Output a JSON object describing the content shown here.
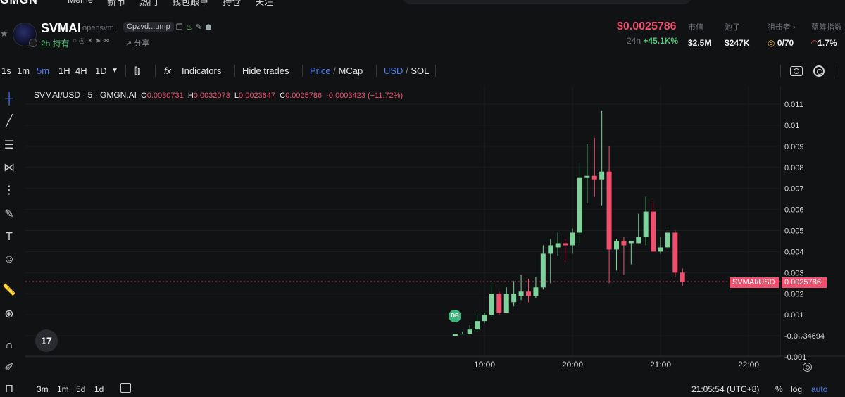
{
  "topnav": {
    "brand": "GMGN",
    "items": [
      "Meme",
      "新币",
      "热门",
      "钱包跟单",
      "持仓",
      "关注"
    ]
  },
  "token": {
    "name": "SVMAI",
    "platform": "opensvm.",
    "address_short": "Cpzvd...ump",
    "hold_time": "2h 持有",
    "share_label": "分享",
    "price": "$0.0025786",
    "change_label": "24h",
    "change_pct": "+45.1K%",
    "stats": [
      {
        "label": "市值",
        "value": "$2.5M"
      },
      {
        "label": "池子",
        "value": "$247K"
      },
      {
        "label": "狙击者 ›",
        "value": "0/70"
      },
      {
        "label": "蓝筹指数",
        "value": "1.7%"
      }
    ]
  },
  "toolbar": {
    "intervals": [
      "1s",
      "1m",
      "5m",
      "1H",
      "4H",
      "1D"
    ],
    "active_interval": "5m",
    "indicators_label": "Indicators",
    "hide_trades_label": "Hide trades",
    "price_label": "Price",
    "mcap_label": "MCap",
    "usd_label": "USD",
    "sol_label": "SOL"
  },
  "legend": {
    "symbol": "SVMAI/USD · 5 · GMGN.AI",
    "o_key": "O",
    "o_val": "0.0030731",
    "h_key": "H",
    "h_val": "0.0032073",
    "l_key": "L",
    "l_val": "0.0023647",
    "c_key": "C",
    "c_val": "0.0025786",
    "change": "-0.0003423 (−11.72%)"
  },
  "price_tag": "0.0025786",
  "symbol_tag": "SVMAI/USD",
  "db_marker": "DB",
  "tv_logo": "17",
  "bottom": {
    "ranges": [
      "3m",
      "1m",
      "5d",
      "1d"
    ],
    "clock": "21:05:54 (UTC+8)",
    "pct_label": "%",
    "log_label": "log",
    "auto_label": "auto"
  },
  "colors": {
    "up": "#7dd39a",
    "down": "#f0506e",
    "accent": "#4c7cf3"
  },
  "chart_data": {
    "type": "candlestick",
    "title": "SVMAI/USD · 5 · GMGN.AI",
    "y_ticks": [
      "0.011",
      "0.01",
      "0.009",
      "0.008",
      "0.007",
      "0.006",
      "0.005",
      "0.004",
      "0.003",
      "0.002",
      "0.001",
      "-0.0₁₇34694",
      "-0.001"
    ],
    "ylim": [
      -0.001,
      0.0113
    ],
    "x_ticks": [
      "19:00",
      "20:00",
      "21:00",
      "22:00"
    ],
    "x_tick_pos": [
      0,
      60,
      120,
      180
    ],
    "x_unit": "minutes after 19:00",
    "candles": [
      {
        "t": -20,
        "o": 0.0,
        "h": 0.0001,
        "l": 0.0,
        "c": 0.0001
      },
      {
        "t": -15,
        "o": 0.0001,
        "h": 0.0002,
        "l": 0.0001,
        "c": 0.0001
      },
      {
        "t": -10,
        "o": 0.0001,
        "h": 0.0005,
        "l": 0.0001,
        "c": 0.0003
      },
      {
        "t": -5,
        "o": 0.0003,
        "h": 0.0011,
        "l": 0.0002,
        "c": 0.0007
      },
      {
        "t": 0,
        "o": 0.0007,
        "h": 0.0011,
        "l": 0.0006,
        "c": 0.001
      },
      {
        "t": 5,
        "o": 0.001,
        "h": 0.0025,
        "l": 0.0009,
        "c": 0.002
      },
      {
        "t": 10,
        "o": 0.002,
        "h": 0.0021,
        "l": 0.001,
        "c": 0.0011
      },
      {
        "t": 15,
        "o": 0.0011,
        "h": 0.0023,
        "l": 0.0011,
        "c": 0.002
      },
      {
        "t": 20,
        "o": 0.0016,
        "h": 0.0026,
        "l": 0.0014,
        "c": 0.002
      },
      {
        "t": 25,
        "o": 0.0019,
        "h": 0.0029,
        "l": 0.0017,
        "c": 0.0021
      },
      {
        "t": 30,
        "o": 0.0021,
        "h": 0.0027,
        "l": 0.0016,
        "c": 0.0019
      },
      {
        "t": 35,
        "o": 0.0019,
        "h": 0.0028,
        "l": 0.0018,
        "c": 0.0023
      },
      {
        "t": 40,
        "o": 0.0023,
        "h": 0.0043,
        "l": 0.0022,
        "c": 0.0039
      },
      {
        "t": 45,
        "o": 0.0039,
        "h": 0.0046,
        "l": 0.0025,
        "c": 0.0043
      },
      {
        "t": 50,
        "o": 0.0042,
        "h": 0.0049,
        "l": 0.0038,
        "c": 0.0044
      },
      {
        "t": 55,
        "o": 0.0044,
        "h": 0.0046,
        "l": 0.0035,
        "c": 0.0043
      },
      {
        "t": 60,
        "o": 0.0043,
        "h": 0.0051,
        "l": 0.0039,
        "c": 0.0049
      },
      {
        "t": 65,
        "o": 0.0049,
        "h": 0.0082,
        "l": 0.0044,
        "c": 0.0075
      },
      {
        "t": 70,
        "o": 0.0075,
        "h": 0.0091,
        "l": 0.0063,
        "c": 0.0076
      },
      {
        "t": 75,
        "o": 0.0076,
        "h": 0.0094,
        "l": 0.0066,
        "c": 0.0074
      },
      {
        "t": 80,
        "o": 0.0074,
        "h": 0.0107,
        "l": 0.0062,
        "c": 0.0078
      },
      {
        "t": 85,
        "o": 0.0078,
        "h": 0.009,
        "l": 0.0025,
        "c": 0.0041
      },
      {
        "t": 90,
        "o": 0.0041,
        "h": 0.0046,
        "l": 0.0031,
        "c": 0.0045
      },
      {
        "t": 95,
        "o": 0.0045,
        "h": 0.0047,
        "l": 0.0029,
        "c": 0.0043
      },
      {
        "t": 100,
        "o": 0.0044,
        "h": 0.0045,
        "l": 0.0034,
        "c": 0.0045
      },
      {
        "t": 105,
        "o": 0.0044,
        "h": 0.0058,
        "l": 0.0044,
        "c": 0.0047
      },
      {
        "t": 110,
        "o": 0.0047,
        "h": 0.0066,
        "l": 0.0043,
        "c": 0.0059
      },
      {
        "t": 115,
        "o": 0.0059,
        "h": 0.0064,
        "l": 0.004,
        "c": 0.004
      },
      {
        "t": 120,
        "o": 0.004,
        "h": 0.0047,
        "l": 0.0039,
        "c": 0.0042
      },
      {
        "t": 125,
        "o": 0.0042,
        "h": 0.005,
        "l": 0.0041,
        "c": 0.0049
      },
      {
        "t": 130,
        "o": 0.0049,
        "h": 0.005,
        "l": 0.0028,
        "c": 0.003
      },
      {
        "t": 135,
        "o": 0.003,
        "h": 0.0032,
        "l": 0.0023647,
        "c": 0.0025786
      }
    ]
  }
}
